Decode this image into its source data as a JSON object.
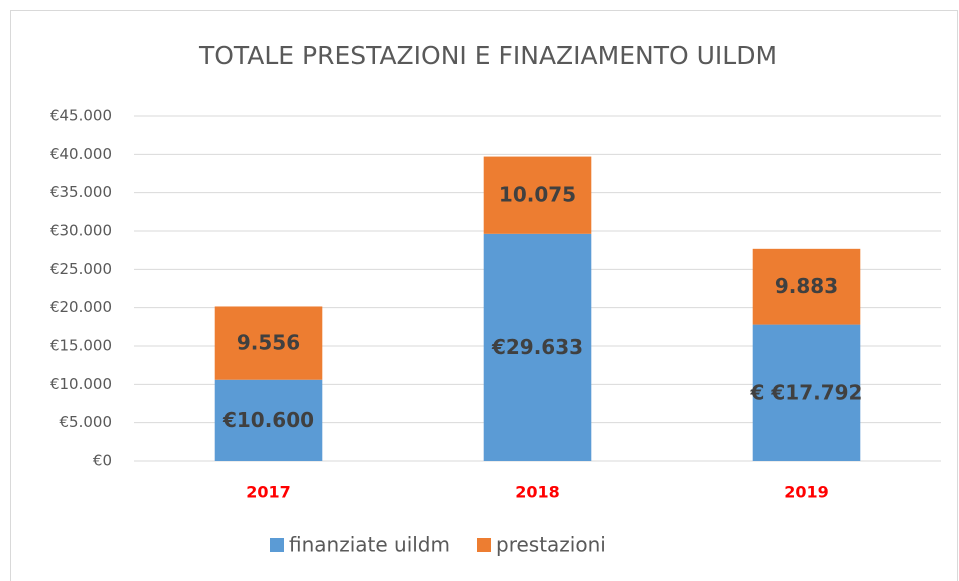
{
  "chart_data": {
    "type": "stacked_bar",
    "title": "TOTALE PRESTAZIONI E FINAZIAMENTO UILDM",
    "categories": [
      "2017",
      "2018",
      "2019"
    ],
    "series": [
      {
        "name": "finanziate uildm",
        "color": "#5b9bd5",
        "values": [
          10600,
          29633,
          17792
        ],
        "value_labels": [
          "€10.600",
          "€29.633",
          "€ €17.792"
        ]
      },
      {
        "name": "prestazioni",
        "color": "#ed7d31",
        "values": [
          9556,
          10075,
          9883
        ],
        "value_labels": [
          "9.556",
          "10.075",
          "9.883"
        ]
      }
    ],
    "ylim": [
      0,
      45000
    ],
    "yticks": [
      {
        "value": 0,
        "label": "€0"
      },
      {
        "value": 5000,
        "label": "€5.000"
      },
      {
        "value": 10000,
        "label": "€10.000"
      },
      {
        "value": 15000,
        "label": "€15.000"
      },
      {
        "value": 20000,
        "label": "€20.000"
      },
      {
        "value": 25000,
        "label": "€25.000"
      },
      {
        "value": 30000,
        "label": "€30.000"
      },
      {
        "value": 35000,
        "label": "€35.000"
      },
      {
        "value": 40000,
        "label": "€40.000"
      },
      {
        "value": 45000,
        "label": "€45.000"
      }
    ],
    "grid": true,
    "legend": "bottom"
  }
}
